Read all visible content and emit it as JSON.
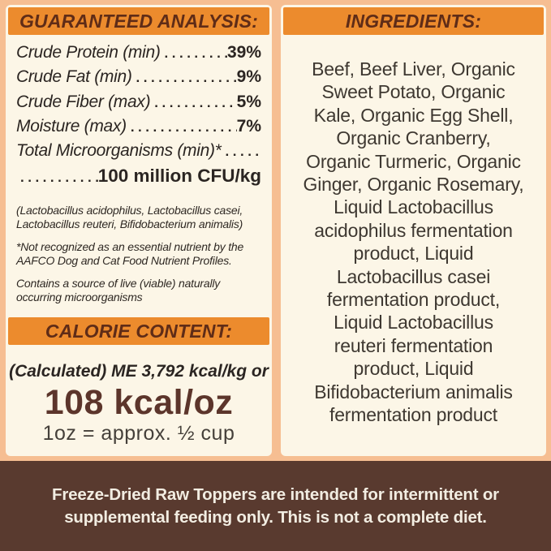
{
  "colors": {
    "background_peach": "#F6BE92",
    "panel_cream": "#FCF6E7",
    "accent_orange": "#EC8B2D",
    "header_text_brown": "#5F2C17",
    "body_text": "#2B2522",
    "calorie_value_brown": "#5C352B",
    "footer_bg_brown": "#593A2F",
    "footer_text": "#F2EDE2"
  },
  "guaranteed_analysis": {
    "header": "GUARANTEED ANALYSIS:",
    "rows": [
      {
        "label": "Crude Protein (min)",
        "dots": ".............",
        "value": "39%"
      },
      {
        "label": "Crude Fat (min)",
        "dots": "..................",
        "value": "9%"
      },
      {
        "label": "Crude Fiber (max)",
        "dots": "................",
        "value": "5%"
      },
      {
        "label": "Moisture (max)",
        "dots": "..................",
        "value": "7%"
      },
      {
        "label": "Total Microorganisms (min)*",
        "dots": "..........",
        "value": ""
      },
      {
        "label": "",
        "dots": "..............",
        "value": "100 million CFU/kg"
      }
    ],
    "notes": [
      {
        "lines": [
          "(Lactobacillus acidophilus, Lactobacillus casei,",
          "Lactobacillus reuteri, Bifidobacterium animalis)"
        ]
      },
      {
        "lines": [
          "*Not recognized as an essential nutrient by the",
          "AAFCO Dog and Cat Food Nutrient Profiles."
        ]
      },
      {
        "lines": [
          "Contains a source of live (viable) naturally",
          "occurring microorganisms"
        ]
      }
    ]
  },
  "calorie_content": {
    "header": "CALORIE CONTENT:",
    "line1": "(Calculated) ME 3,792 kcal/kg or",
    "value": "108 kcal/oz",
    "line3": "1oz = approx. ½ cup"
  },
  "ingredients": {
    "header": "INGREDIENTS:",
    "text": "Beef, Beef Liver, Organic Sweet Potato, Organic Kale, Organic Egg Shell, Organic Cranberry, Organic Turmeric, Organic Ginger, Organic Rosemary, Liquid Lactobacillus acidophilus fermentation product, Liquid Lactobacillus casei fermentation product, Liquid Lactobacillus reuteri fermentation product, Liquid Bifidobacterium animalis fermentation product",
    "lines": [
      "Beef, Beef Liver, Organic",
      "Sweet Potato, Organic",
      "Kale, Organic Egg Shell,",
      "Organic Cranberry,",
      "Organic Turmeric, Organic",
      "Ginger, Organic Rosemary,",
      "Liquid Lactobacillus",
      "acidophilus fermentation",
      "product, Liquid",
      "Lactobacillus casei",
      "fermentation product,",
      "Liquid Lactobacillus",
      "reuteri fermentation",
      "product, Liquid",
      "Bifidobacterium animalis",
      "fermentation product"
    ]
  },
  "footer": {
    "text": "Freeze-Dried Raw Toppers are intended for intermittent or supplemental feeding only. This is not a complete diet.",
    "lines": [
      "Freeze-Dried Raw Toppers are intended for intermittent or",
      "supplemental feeding only. This is not a complete diet."
    ]
  }
}
